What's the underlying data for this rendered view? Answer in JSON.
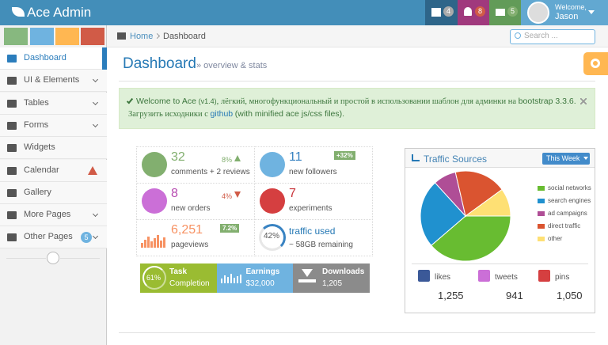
{
  "navbar": {
    "brand": "Ace Admin",
    "badges": [
      "4",
      "8",
      "5"
    ],
    "welcome": "Welcome,",
    "user": "Jason"
  },
  "breadcrumb": {
    "home": "Home",
    "current": "Dashboard",
    "search_placeholder": "Search ..."
  },
  "sidebar": {
    "items": [
      {
        "label": "Dashboard"
      },
      {
        "label": "UI & Elements"
      },
      {
        "label": "Tables"
      },
      {
        "label": "Forms"
      },
      {
        "label": "Widgets"
      },
      {
        "label": "Calendar"
      },
      {
        "label": "Gallery"
      },
      {
        "label": "More Pages"
      },
      {
        "label": "Other Pages",
        "badge": "5"
      }
    ]
  },
  "page_header": {
    "title": "Dashboard",
    "subtitle": "» overview & stats"
  },
  "alert": {
    "welcome": "Welcome to",
    "brand": "Ace",
    "version": "(v1.4)",
    "description": ", лёгкий, многофункциональный и простой в использовании шаблон для админки на",
    "framework": "bootstrap 3.3.6.",
    "download": "Загрузить исходники с",
    "link": "github",
    "note": "(with minified ace js/css files)."
  },
  "infoboxes": [
    {
      "number": "32",
      "text": "comments + 2 reviews",
      "change": "8%"
    },
    {
      "number": "11",
      "text": "new followers",
      "change": "+32%"
    },
    {
      "number": "8",
      "text": "new orders",
      "change": "4%"
    },
    {
      "number": "7",
      "text": "experiments"
    },
    {
      "number": "6,251",
      "text": "pageviews",
      "change": "7.2%"
    },
    {
      "ring": "42%",
      "number": "traffic used",
      "text": "~ 58GB remaining"
    }
  ],
  "stat_boxes": [
    {
      "percent": "61%",
      "title": "Task",
      "subtitle": "Completion"
    },
    {
      "title": "Earnings",
      "subtitle": "$32,000"
    },
    {
      "title": "Downloads",
      "subtitle": "1,205"
    }
  ],
  "traffic_widget": {
    "period": "This Week",
    "social": [
      {
        "label": "likes",
        "count": "1,255"
      },
      {
        "label": "tweets",
        "count": "941"
      },
      {
        "label": "pins",
        "count": "1,050"
      }
    ]
  },
  "chart_data": {
    "type": "pie",
    "title": "Traffic Sources",
    "categories": [
      "social networks",
      "search engines",
      "ad campaigns",
      "direct traffic",
      "other"
    ],
    "values": [
      38.7,
      24.5,
      8.2,
      18.6,
      10
    ],
    "colors": [
      "#68bc31",
      "#2091cf",
      "#af4e96",
      "#da5430",
      "#fee074"
    ]
  }
}
